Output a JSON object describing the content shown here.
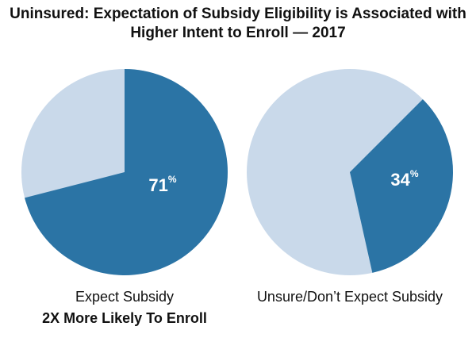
{
  "title": "Uninsured: Expectation of Subsidy Eligibility is Associated with Higher Intent to Enroll — 2017",
  "chart_data": [
    {
      "type": "pie",
      "values": [
        71
      ],
      "value_labels": [
        "71%"
      ],
      "color": "#2b74a5",
      "rest_color": "#c9d9ea",
      "start_angle": 0,
      "label": "Expect Subsidy",
      "note": "2X More Likely To Enroll"
    },
    {
      "type": "pie",
      "values": [
        34
      ],
      "value_labels": [
        "34%"
      ],
      "color": "#2b74a5",
      "rest_color": "#c9d9ea",
      "start_angle": 45,
      "label": "Unsure/Don’t Expect Subsidy"
    }
  ]
}
